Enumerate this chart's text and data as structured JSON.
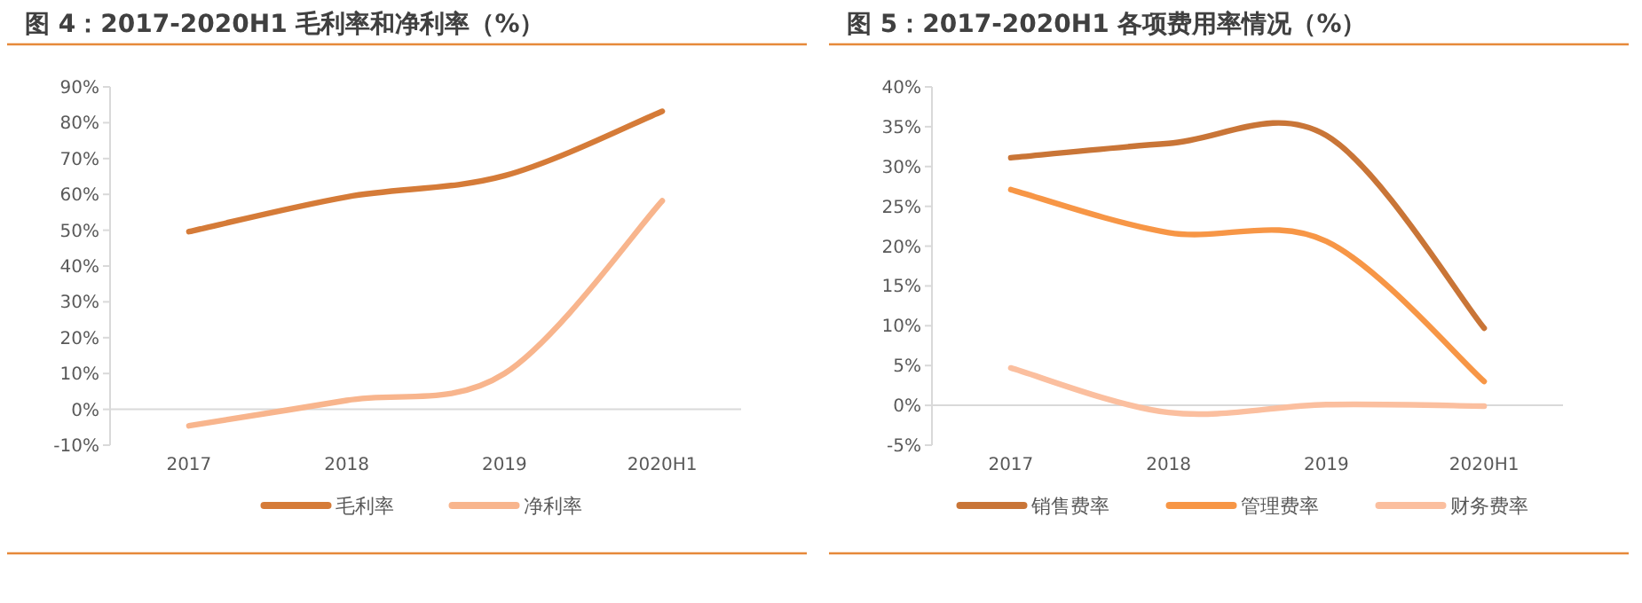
{
  "chart_data": [
    {
      "type": "line",
      "title": "图 4：2017-2020H1 毛利率和净利率（%）",
      "categories": [
        "2017",
        "2018",
        "2019",
        "2020H1"
      ],
      "series": [
        {
          "name": "毛利率",
          "color": "#d57b38",
          "values": [
            49.6,
            59.3,
            65.2,
            83.2
          ]
        },
        {
          "name": "净利率",
          "color": "#f8b58d",
          "values": [
            -4.6,
            2.5,
            10,
            58.2
          ]
        }
      ],
      "ylim": [
        -10,
        90
      ],
      "yticks": [
        {
          "value": -10,
          "label": "-10%"
        },
        {
          "value": 0,
          "label": "0%"
        },
        {
          "value": 10,
          "label": "10%"
        },
        {
          "value": 20,
          "label": "20%"
        },
        {
          "value": 30,
          "label": "30%"
        },
        {
          "value": 40,
          "label": "40%"
        },
        {
          "value": 50,
          "label": "50%"
        },
        {
          "value": 60,
          "label": "60%"
        },
        {
          "value": 70,
          "label": "70%"
        },
        {
          "value": 80,
          "label": "80%"
        },
        {
          "value": 90,
          "label": "90%"
        }
      ],
      "legend": "bottom"
    },
    {
      "type": "line",
      "title": "图 5：2017-2020H1 各项费用率情况（%）",
      "categories": [
        "2017",
        "2018",
        "2019",
        "2020H1"
      ],
      "series": [
        {
          "name": "销售费率",
          "color": "#c97537",
          "values": [
            31.1,
            32.9,
            33.9,
            9.7
          ]
        },
        {
          "name": "管理费率",
          "color": "#f79646",
          "values": [
            27.1,
            21.7,
            20.6,
            3.0
          ]
        },
        {
          "name": "财务费率",
          "color": "#fbbf9f",
          "values": [
            4.7,
            -0.9,
            0.1,
            -0.1
          ]
        }
      ],
      "ylim": [
        -5,
        40
      ],
      "yticks": [
        {
          "value": -5,
          "label": "-5%"
        },
        {
          "value": 0,
          "label": "0%"
        },
        {
          "value": 5,
          "label": "5%"
        },
        {
          "value": 10,
          "label": "10%"
        },
        {
          "value": 15,
          "label": "15%"
        },
        {
          "value": 20,
          "label": "20%"
        },
        {
          "value": 25,
          "label": "25%"
        },
        {
          "value": 30,
          "label": "30%"
        },
        {
          "value": 35,
          "label": "35%"
        },
        {
          "value": 40,
          "label": "40%"
        }
      ],
      "legend": "bottom"
    }
  ]
}
